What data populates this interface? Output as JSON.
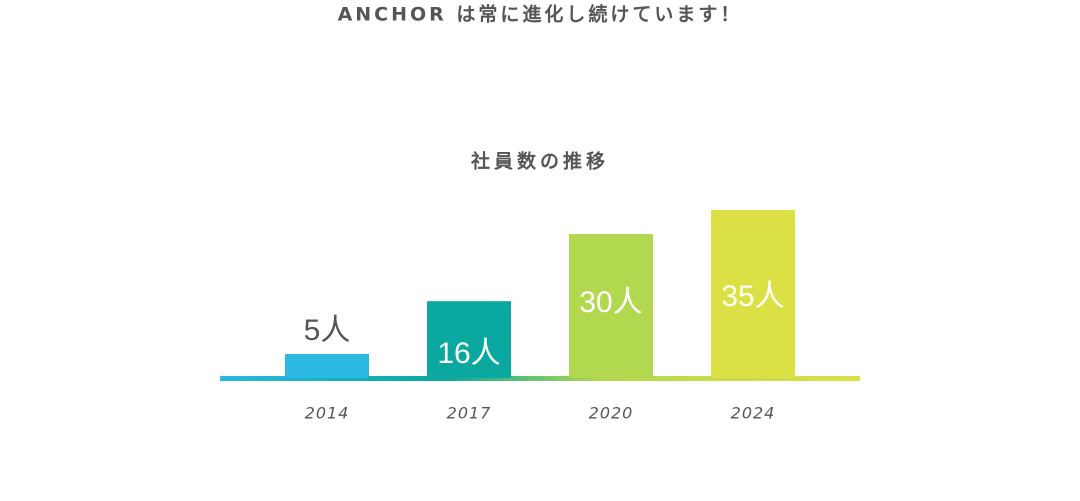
{
  "heading": "ANCHOR は常に進化し続けています！",
  "chart_data": {
    "type": "bar",
    "title": "社員数の推移",
    "categories": [
      "2014",
      "2017",
      "2020",
      "2024"
    ],
    "values": [
      5,
      16,
      30,
      35
    ],
    "value_labels": [
      "5人",
      "16人",
      "30人",
      "35人"
    ],
    "colors": [
      "#2bb8e3",
      "#0aa89e",
      "#b2d84f",
      "#dbe145"
    ]
  }
}
